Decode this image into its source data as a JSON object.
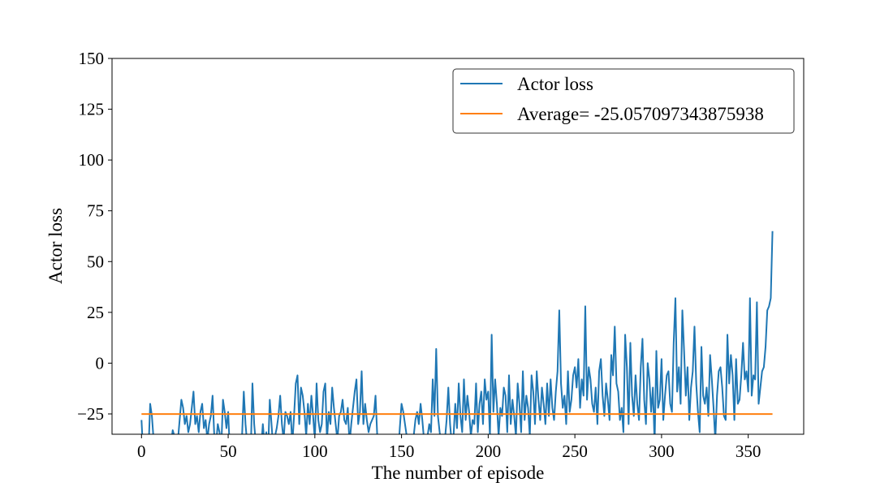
{
  "chart_data": {
    "type": "line",
    "title": "",
    "xlabel": "The number of episode",
    "ylabel": "Actor loss",
    "xlim": [
      -17,
      382
    ],
    "ylim": [
      -35,
      150
    ],
    "xticks": [
      0,
      50,
      100,
      150,
      200,
      250,
      300,
      350
    ],
    "xtick_labels": [
      "0",
      "50",
      "100",
      "150",
      "200",
      "250",
      "300",
      "350"
    ],
    "yticks": [
      -25,
      0,
      25,
      50,
      75,
      100,
      125,
      150
    ],
    "ytick_labels": [
      "−25",
      "0",
      "25",
      "50",
      "75",
      "100",
      "125",
      "150"
    ],
    "legend_placement": "upper-right",
    "grid": false,
    "series": [
      {
        "name": "Actor loss",
        "color": "#1f77b4",
        "x_start": 0,
        "x_step": 1,
        "values": [
          -28,
          -45,
          -40,
          -38,
          -44,
          -20,
          -26,
          -38,
          -48,
          -42,
          -40,
          -45,
          -50,
          -44,
          -40,
          -42,
          -46,
          -40,
          -33,
          -36,
          -42,
          -38,
          -28,
          -18,
          -22,
          -30,
          -26,
          -34,
          -30,
          -22,
          -14,
          -30,
          -26,
          -34,
          -24,
          -20,
          -32,
          -28,
          -38,
          -30,
          -26,
          -16,
          -36,
          -40,
          -30,
          -34,
          -42,
          -18,
          -24,
          -32,
          -24,
          -44,
          -36,
          -42,
          -38,
          -44,
          -40,
          -46,
          -36,
          -14,
          -30,
          -40,
          -38,
          -44,
          -10,
          -30,
          -40,
          -46,
          -38,
          -42,
          -30,
          -40,
          -34,
          -44,
          -18,
          -30,
          -42,
          -36,
          -32,
          -26,
          -16,
          -30,
          -38,
          -24,
          -26,
          -30,
          -24,
          -40,
          -26,
          -10,
          -6,
          -30,
          -12,
          -16,
          -24,
          -36,
          -20,
          -30,
          -16,
          -26,
          -38,
          -10,
          -28,
          -34,
          -30,
          -14,
          -10,
          -38,
          -24,
          -30,
          -12,
          -22,
          -30,
          -38,
          -26,
          -24,
          -18,
          -28,
          -30,
          -22,
          -40,
          -30,
          -22,
          -14,
          -8,
          -30,
          -24,
          -4,
          -30,
          -20,
          -28,
          -34,
          -30,
          -28,
          -26,
          -16,
          -36,
          -44,
          -40,
          -38,
          -36,
          -40,
          -38,
          -42,
          -40,
          -44,
          -38,
          -36,
          -46,
          -32,
          -20,
          -24,
          -30,
          -36,
          -40,
          -38,
          -40,
          -36,
          -28,
          -24,
          -30,
          -20,
          -28,
          -38,
          -40,
          -36,
          -30,
          -34,
          -8,
          -26,
          7,
          -26,
          -34,
          -40,
          -36,
          -38,
          -28,
          -12,
          -30,
          -40,
          -36,
          -20,
          -32,
          -10,
          -26,
          -34,
          -8,
          -28,
          -16,
          -24,
          -36,
          -28,
          -30,
          -10,
          -34,
          -20,
          -14,
          -30,
          -8,
          -18,
          -14,
          -36,
          14,
          -24,
          -8,
          -20,
          -36,
          -22,
          -26,
          -12,
          -16,
          -34,
          -6,
          -30,
          -18,
          -26,
          -36,
          -10,
          -20,
          -34,
          -4,
          -28,
          -16,
          -22,
          -36,
          -6,
          -14,
          -30,
          -4,
          -18,
          -28,
          -12,
          -20,
          -30,
          -10,
          -26,
          -8,
          -22,
          -28,
          -14,
          -4,
          26,
          -10,
          -22,
          -16,
          -30,
          -4,
          -24,
          -18,
          -6,
          -2,
          -12,
          2,
          -22,
          -8,
          -16,
          28,
          -18,
          -2,
          -8,
          -20,
          -24,
          -12,
          -30,
          -4,
          2,
          -16,
          -26,
          -10,
          -18,
          -28,
          4,
          -6,
          18,
          -10,
          -14,
          -28,
          -22,
          -34,
          14,
          -2,
          -30,
          10,
          -16,
          -26,
          -6,
          -20,
          -28,
          -2,
          12,
          -18,
          -30,
          0,
          -8,
          -24,
          -12,
          -40,
          6,
          -22,
          -18,
          2,
          -28,
          -16,
          -6,
          -4,
          -20,
          -24,
          10,
          32,
          -14,
          -2,
          -20,
          26,
          6,
          -16,
          -2,
          -28,
          -12,
          -4,
          18,
          -10,
          -24,
          -34,
          8,
          -16,
          -20,
          -12,
          -26,
          4,
          -8,
          -22,
          -38,
          -16,
          -4,
          -2,
          -12,
          -26,
          -28,
          14,
          -10,
          4,
          -6,
          -28,
          2,
          -20,
          -18,
          -6,
          10,
          -8,
          -4,
          -14,
          32,
          -16,
          -6,
          -8,
          30,
          -20,
          -12,
          -4,
          -2,
          8,
          26,
          28,
          32,
          65
        ]
      },
      {
        "name": "Average= -25.057097343875938",
        "color": "#ff7f0e",
        "x": [
          0,
          364
        ],
        "y": [
          -25.057097343875938,
          -25.057097343875938
        ]
      }
    ]
  }
}
